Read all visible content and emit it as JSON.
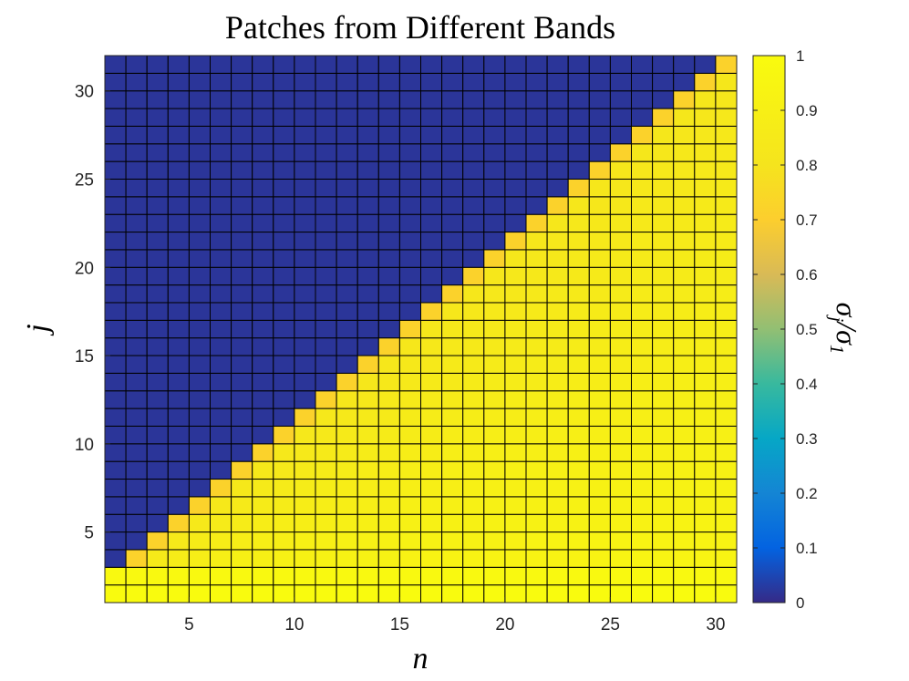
{
  "chart_data": {
    "type": "heatmap",
    "title": "Patches from Different Bands",
    "xlabel": "n",
    "ylabel": "j",
    "colorbar_label": "σj/σ1",
    "colorbar_label_parts": {
      "num": "σ",
      "num_sub": "j",
      "sep": "/",
      "den": "σ",
      "den_sub": "1"
    },
    "colormap": "parula",
    "x_range": [
      1,
      31
    ],
    "y_range": [
      1,
      32
    ],
    "xlim": [
      1,
      31
    ],
    "ylim": [
      1,
      32
    ],
    "x_ticks": [
      5,
      10,
      15,
      20,
      25,
      30
    ],
    "y_ticks": [
      5,
      10,
      15,
      20,
      25,
      30
    ],
    "clim": [
      0,
      1
    ],
    "colorbar_ticks": [
      0,
      0.1,
      0.2,
      0.3,
      0.4,
      0.5,
      0.6,
      0.7,
      0.8,
      0.9,
      1
    ],
    "colorbar_tick_labels": [
      "0",
      "0.1",
      "0.2",
      "0.3",
      "0.4",
      "0.5",
      "0.6",
      "0.7",
      "0.8",
      "0.9",
      "1"
    ],
    "grid_lines": true,
    "description_of_values": {
      "cell_rule": "value is ~0 (dark blue) for j > n + 1; otherwise between ~0.75 and ~1",
      "row_1": 1.0,
      "row_2": 0.98,
      "diagonal_edge": 0.72,
      "interior": 0.82
    }
  }
}
